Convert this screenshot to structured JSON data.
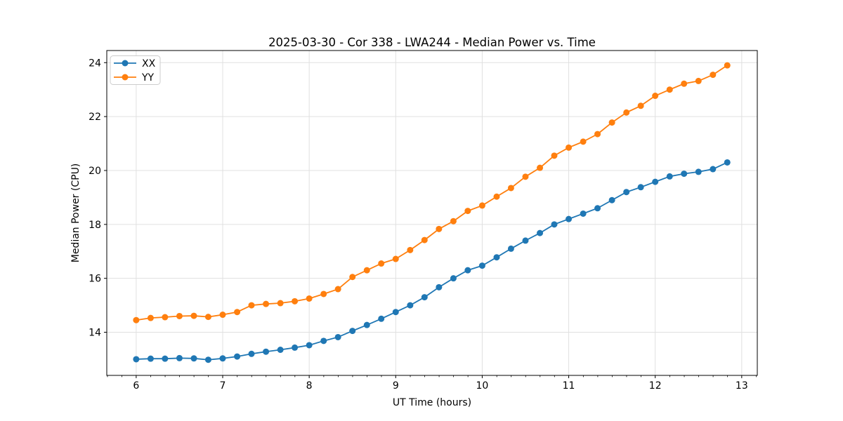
{
  "chart_data": {
    "type": "line",
    "title": "2025-03-30 - Cor 338 - LWA244 - Median Power vs. Time",
    "xlabel": "UT Time (hours)",
    "ylabel": "Median Power (CPU)",
    "xlim": [
      5.66,
      13.18
    ],
    "ylim": [
      12.4,
      24.45
    ],
    "xticks": [
      6,
      7,
      8,
      9,
      10,
      11,
      12,
      13
    ],
    "yticks": [
      14,
      16,
      18,
      20,
      22,
      24
    ],
    "x_minor_step": 0.1667,
    "grid": true,
    "grid_color": "#e0e0e0",
    "legend_position": "upper-left",
    "x": [
      6.0,
      6.167,
      6.333,
      6.5,
      6.667,
      6.833,
      7.0,
      7.167,
      7.333,
      7.5,
      7.667,
      7.833,
      8.0,
      8.167,
      8.333,
      8.5,
      8.667,
      8.833,
      9.0,
      9.167,
      9.333,
      9.5,
      9.667,
      9.833,
      10.0,
      10.167,
      10.333,
      10.5,
      10.667,
      10.833,
      11.0,
      11.167,
      11.333,
      11.5,
      11.667,
      11.833,
      12.0,
      12.167,
      12.333,
      12.5,
      12.667,
      12.833
    ],
    "series": [
      {
        "name": "XX",
        "color": "#1f77b4",
        "values": [
          13.0,
          13.02,
          13.02,
          13.04,
          13.03,
          12.98,
          13.03,
          13.1,
          13.2,
          13.28,
          13.35,
          13.43,
          13.52,
          13.68,
          13.82,
          14.05,
          14.27,
          14.5,
          14.75,
          15.0,
          15.3,
          15.67,
          16.0,
          16.3,
          16.47,
          16.78,
          17.1,
          17.4,
          17.68,
          18.0,
          18.2,
          18.4,
          18.6,
          18.9,
          19.2,
          19.38,
          19.58,
          19.78,
          19.88,
          19.95,
          20.05,
          20.3
        ]
      },
      {
        "name": "YY",
        "color": "#ff7f0e",
        "values": [
          14.45,
          14.53,
          14.56,
          14.6,
          14.61,
          14.57,
          14.65,
          14.75,
          15.0,
          15.05,
          15.08,
          15.15,
          15.25,
          15.42,
          15.6,
          16.05,
          16.3,
          16.55,
          16.72,
          17.05,
          17.42,
          17.83,
          18.12,
          18.5,
          18.7,
          19.03,
          19.35,
          19.77,
          20.1,
          20.55,
          20.85,
          21.07,
          21.35,
          21.78,
          22.15,
          22.4,
          22.77,
          23.0,
          23.22,
          23.32,
          23.55,
          23.9
        ]
      }
    ]
  }
}
